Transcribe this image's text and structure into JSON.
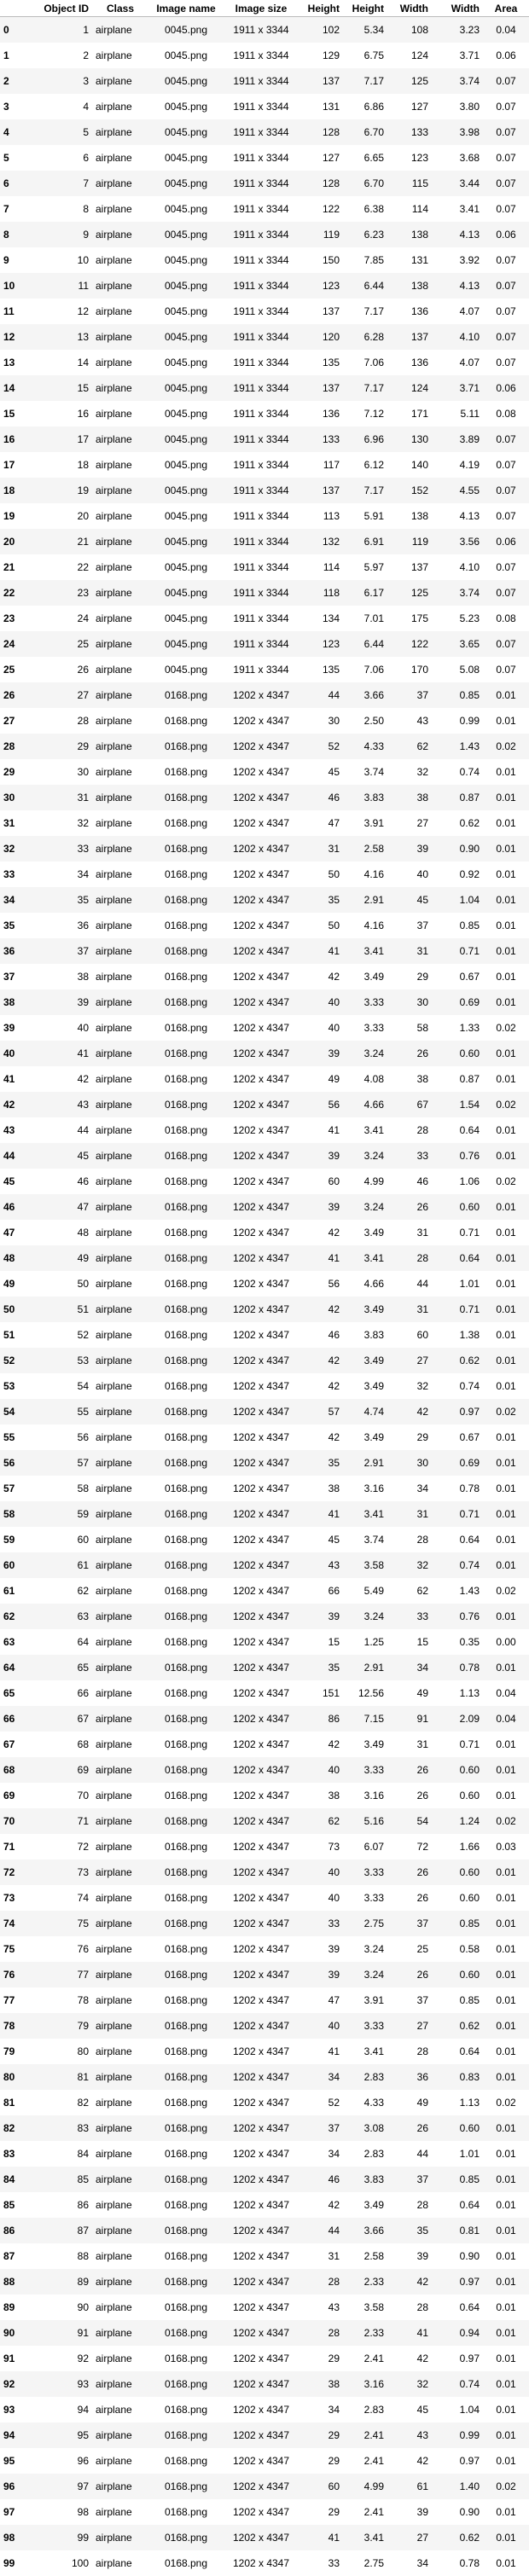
{
  "table": {
    "headers": [
      "",
      "Object ID",
      "Class",
      "Image name",
      "Image size",
      "Height",
      "Height",
      "Width",
      "Width",
      "Area"
    ],
    "rows": [
      [
        "0",
        "1",
        "airplane",
        "0045.png",
        "1911 x 3344",
        "102",
        "5.34",
        "108",
        "3.23",
        "0.04"
      ],
      [
        "1",
        "2",
        "airplane",
        "0045.png",
        "1911 x 3344",
        "129",
        "6.75",
        "124",
        "3.71",
        "0.06"
      ],
      [
        "2",
        "3",
        "airplane",
        "0045.png",
        "1911 x 3344",
        "137",
        "7.17",
        "125",
        "3.74",
        "0.07"
      ],
      [
        "3",
        "4",
        "airplane",
        "0045.png",
        "1911 x 3344",
        "131",
        "6.86",
        "127",
        "3.80",
        "0.07"
      ],
      [
        "4",
        "5",
        "airplane",
        "0045.png",
        "1911 x 3344",
        "128",
        "6.70",
        "133",
        "3.98",
        "0.07"
      ],
      [
        "5",
        "6",
        "airplane",
        "0045.png",
        "1911 x 3344",
        "127",
        "6.65",
        "123",
        "3.68",
        "0.07"
      ],
      [
        "6",
        "7",
        "airplane",
        "0045.png",
        "1911 x 3344",
        "128",
        "6.70",
        "115",
        "3.44",
        "0.07"
      ],
      [
        "7",
        "8",
        "airplane",
        "0045.png",
        "1911 x 3344",
        "122",
        "6.38",
        "114",
        "3.41",
        "0.07"
      ],
      [
        "8",
        "9",
        "airplane",
        "0045.png",
        "1911 x 3344",
        "119",
        "6.23",
        "138",
        "4.13",
        "0.06"
      ],
      [
        "9",
        "10",
        "airplane",
        "0045.png",
        "1911 x 3344",
        "150",
        "7.85",
        "131",
        "3.92",
        "0.07"
      ],
      [
        "10",
        "11",
        "airplane",
        "0045.png",
        "1911 x 3344",
        "123",
        "6.44",
        "138",
        "4.13",
        "0.07"
      ],
      [
        "11",
        "12",
        "airplane",
        "0045.png",
        "1911 x 3344",
        "137",
        "7.17",
        "136",
        "4.07",
        "0.07"
      ],
      [
        "12",
        "13",
        "airplane",
        "0045.png",
        "1911 x 3344",
        "120",
        "6.28",
        "137",
        "4.10",
        "0.07"
      ],
      [
        "13",
        "14",
        "airplane",
        "0045.png",
        "1911 x 3344",
        "135",
        "7.06",
        "136",
        "4.07",
        "0.07"
      ],
      [
        "14",
        "15",
        "airplane",
        "0045.png",
        "1911 x 3344",
        "137",
        "7.17",
        "124",
        "3.71",
        "0.06"
      ],
      [
        "15",
        "16",
        "airplane",
        "0045.png",
        "1911 x 3344",
        "136",
        "7.12",
        "171",
        "5.11",
        "0.08"
      ],
      [
        "16",
        "17",
        "airplane",
        "0045.png",
        "1911 x 3344",
        "133",
        "6.96",
        "130",
        "3.89",
        "0.07"
      ],
      [
        "17",
        "18",
        "airplane",
        "0045.png",
        "1911 x 3344",
        "117",
        "6.12",
        "140",
        "4.19",
        "0.07"
      ],
      [
        "18",
        "19",
        "airplane",
        "0045.png",
        "1911 x 3344",
        "137",
        "7.17",
        "152",
        "4.55",
        "0.07"
      ],
      [
        "19",
        "20",
        "airplane",
        "0045.png",
        "1911 x 3344",
        "113",
        "5.91",
        "138",
        "4.13",
        "0.07"
      ],
      [
        "20",
        "21",
        "airplane",
        "0045.png",
        "1911 x 3344",
        "132",
        "6.91",
        "119",
        "3.56",
        "0.06"
      ],
      [
        "21",
        "22",
        "airplane",
        "0045.png",
        "1911 x 3344",
        "114",
        "5.97",
        "137",
        "4.10",
        "0.07"
      ],
      [
        "22",
        "23",
        "airplane",
        "0045.png",
        "1911 x 3344",
        "118",
        "6.17",
        "125",
        "3.74",
        "0.07"
      ],
      [
        "23",
        "24",
        "airplane",
        "0045.png",
        "1911 x 3344",
        "134",
        "7.01",
        "175",
        "5.23",
        "0.08"
      ],
      [
        "24",
        "25",
        "airplane",
        "0045.png",
        "1911 x 3344",
        "123",
        "6.44",
        "122",
        "3.65",
        "0.07"
      ],
      [
        "25",
        "26",
        "airplane",
        "0045.png",
        "1911 x 3344",
        "135",
        "7.06",
        "170",
        "5.08",
        "0.07"
      ],
      [
        "26",
        "27",
        "airplane",
        "0168.png",
        "1202 x 4347",
        "44",
        "3.66",
        "37",
        "0.85",
        "0.01"
      ],
      [
        "27",
        "28",
        "airplane",
        "0168.png",
        "1202 x 4347",
        "30",
        "2.50",
        "43",
        "0.99",
        "0.01"
      ],
      [
        "28",
        "29",
        "airplane",
        "0168.png",
        "1202 x 4347",
        "52",
        "4.33",
        "62",
        "1.43",
        "0.02"
      ],
      [
        "29",
        "30",
        "airplane",
        "0168.png",
        "1202 x 4347",
        "45",
        "3.74",
        "32",
        "0.74",
        "0.01"
      ],
      [
        "30",
        "31",
        "airplane",
        "0168.png",
        "1202 x 4347",
        "46",
        "3.83",
        "38",
        "0.87",
        "0.01"
      ],
      [
        "31",
        "32",
        "airplane",
        "0168.png",
        "1202 x 4347",
        "47",
        "3.91",
        "27",
        "0.62",
        "0.01"
      ],
      [
        "32",
        "33",
        "airplane",
        "0168.png",
        "1202 x 4347",
        "31",
        "2.58",
        "39",
        "0.90",
        "0.01"
      ],
      [
        "33",
        "34",
        "airplane",
        "0168.png",
        "1202 x 4347",
        "50",
        "4.16",
        "40",
        "0.92",
        "0.01"
      ],
      [
        "34",
        "35",
        "airplane",
        "0168.png",
        "1202 x 4347",
        "35",
        "2.91",
        "45",
        "1.04",
        "0.01"
      ],
      [
        "35",
        "36",
        "airplane",
        "0168.png",
        "1202 x 4347",
        "50",
        "4.16",
        "37",
        "0.85",
        "0.01"
      ],
      [
        "36",
        "37",
        "airplane",
        "0168.png",
        "1202 x 4347",
        "41",
        "3.41",
        "31",
        "0.71",
        "0.01"
      ],
      [
        "37",
        "38",
        "airplane",
        "0168.png",
        "1202 x 4347",
        "42",
        "3.49",
        "29",
        "0.67",
        "0.01"
      ],
      [
        "38",
        "39",
        "airplane",
        "0168.png",
        "1202 x 4347",
        "40",
        "3.33",
        "30",
        "0.69",
        "0.01"
      ],
      [
        "39",
        "40",
        "airplane",
        "0168.png",
        "1202 x 4347",
        "40",
        "3.33",
        "58",
        "1.33",
        "0.02"
      ],
      [
        "40",
        "41",
        "airplane",
        "0168.png",
        "1202 x 4347",
        "39",
        "3.24",
        "26",
        "0.60",
        "0.01"
      ],
      [
        "41",
        "42",
        "airplane",
        "0168.png",
        "1202 x 4347",
        "49",
        "4.08",
        "38",
        "0.87",
        "0.01"
      ],
      [
        "42",
        "43",
        "airplane",
        "0168.png",
        "1202 x 4347",
        "56",
        "4.66",
        "67",
        "1.54",
        "0.02"
      ],
      [
        "43",
        "44",
        "airplane",
        "0168.png",
        "1202 x 4347",
        "41",
        "3.41",
        "28",
        "0.64",
        "0.01"
      ],
      [
        "44",
        "45",
        "airplane",
        "0168.png",
        "1202 x 4347",
        "39",
        "3.24",
        "33",
        "0.76",
        "0.01"
      ],
      [
        "45",
        "46",
        "airplane",
        "0168.png",
        "1202 x 4347",
        "60",
        "4.99",
        "46",
        "1.06",
        "0.02"
      ],
      [
        "46",
        "47",
        "airplane",
        "0168.png",
        "1202 x 4347",
        "39",
        "3.24",
        "26",
        "0.60",
        "0.01"
      ],
      [
        "47",
        "48",
        "airplane",
        "0168.png",
        "1202 x 4347",
        "42",
        "3.49",
        "31",
        "0.71",
        "0.01"
      ],
      [
        "48",
        "49",
        "airplane",
        "0168.png",
        "1202 x 4347",
        "41",
        "3.41",
        "28",
        "0.64",
        "0.01"
      ],
      [
        "49",
        "50",
        "airplane",
        "0168.png",
        "1202 x 4347",
        "56",
        "4.66",
        "44",
        "1.01",
        "0.01"
      ],
      [
        "50",
        "51",
        "airplane",
        "0168.png",
        "1202 x 4347",
        "42",
        "3.49",
        "31",
        "0.71",
        "0.01"
      ],
      [
        "51",
        "52",
        "airplane",
        "0168.png",
        "1202 x 4347",
        "46",
        "3.83",
        "60",
        "1.38",
        "0.01"
      ],
      [
        "52",
        "53",
        "airplane",
        "0168.png",
        "1202 x 4347",
        "42",
        "3.49",
        "27",
        "0.62",
        "0.01"
      ],
      [
        "53",
        "54",
        "airplane",
        "0168.png",
        "1202 x 4347",
        "42",
        "3.49",
        "32",
        "0.74",
        "0.01"
      ],
      [
        "54",
        "55",
        "airplane",
        "0168.png",
        "1202 x 4347",
        "57",
        "4.74",
        "42",
        "0.97",
        "0.02"
      ],
      [
        "55",
        "56",
        "airplane",
        "0168.png",
        "1202 x 4347",
        "42",
        "3.49",
        "29",
        "0.67",
        "0.01"
      ],
      [
        "56",
        "57",
        "airplane",
        "0168.png",
        "1202 x 4347",
        "35",
        "2.91",
        "30",
        "0.69",
        "0.01"
      ],
      [
        "57",
        "58",
        "airplane",
        "0168.png",
        "1202 x 4347",
        "38",
        "3.16",
        "34",
        "0.78",
        "0.01"
      ],
      [
        "58",
        "59",
        "airplane",
        "0168.png",
        "1202 x 4347",
        "41",
        "3.41",
        "31",
        "0.71",
        "0.01"
      ],
      [
        "59",
        "60",
        "airplane",
        "0168.png",
        "1202 x 4347",
        "45",
        "3.74",
        "28",
        "0.64",
        "0.01"
      ],
      [
        "60",
        "61",
        "airplane",
        "0168.png",
        "1202 x 4347",
        "43",
        "3.58",
        "32",
        "0.74",
        "0.01"
      ],
      [
        "61",
        "62",
        "airplane",
        "0168.png",
        "1202 x 4347",
        "66",
        "5.49",
        "62",
        "1.43",
        "0.02"
      ],
      [
        "62",
        "63",
        "airplane",
        "0168.png",
        "1202 x 4347",
        "39",
        "3.24",
        "33",
        "0.76",
        "0.01"
      ],
      [
        "63",
        "64",
        "airplane",
        "0168.png",
        "1202 x 4347",
        "15",
        "1.25",
        "15",
        "0.35",
        "0.00"
      ],
      [
        "64",
        "65",
        "airplane",
        "0168.png",
        "1202 x 4347",
        "35",
        "2.91",
        "34",
        "0.78",
        "0.01"
      ],
      [
        "65",
        "66",
        "airplane",
        "0168.png",
        "1202 x 4347",
        "151",
        "12.56",
        "49",
        "1.13",
        "0.04"
      ],
      [
        "66",
        "67",
        "airplane",
        "0168.png",
        "1202 x 4347",
        "86",
        "7.15",
        "91",
        "2.09",
        "0.04"
      ],
      [
        "67",
        "68",
        "airplane",
        "0168.png",
        "1202 x 4347",
        "42",
        "3.49",
        "31",
        "0.71",
        "0.01"
      ],
      [
        "68",
        "69",
        "airplane",
        "0168.png",
        "1202 x 4347",
        "40",
        "3.33",
        "26",
        "0.60",
        "0.01"
      ],
      [
        "69",
        "70",
        "airplane",
        "0168.png",
        "1202 x 4347",
        "38",
        "3.16",
        "26",
        "0.60",
        "0.01"
      ],
      [
        "70",
        "71",
        "airplane",
        "0168.png",
        "1202 x 4347",
        "62",
        "5.16",
        "54",
        "1.24",
        "0.02"
      ],
      [
        "71",
        "72",
        "airplane",
        "0168.png",
        "1202 x 4347",
        "73",
        "6.07",
        "72",
        "1.66",
        "0.03"
      ],
      [
        "72",
        "73",
        "airplane",
        "0168.png",
        "1202 x 4347",
        "40",
        "3.33",
        "26",
        "0.60",
        "0.01"
      ],
      [
        "73",
        "74",
        "airplane",
        "0168.png",
        "1202 x 4347",
        "40",
        "3.33",
        "26",
        "0.60",
        "0.01"
      ],
      [
        "74",
        "75",
        "airplane",
        "0168.png",
        "1202 x 4347",
        "33",
        "2.75",
        "37",
        "0.85",
        "0.01"
      ],
      [
        "75",
        "76",
        "airplane",
        "0168.png",
        "1202 x 4347",
        "39",
        "3.24",
        "25",
        "0.58",
        "0.01"
      ],
      [
        "76",
        "77",
        "airplane",
        "0168.png",
        "1202 x 4347",
        "39",
        "3.24",
        "26",
        "0.60",
        "0.01"
      ],
      [
        "77",
        "78",
        "airplane",
        "0168.png",
        "1202 x 4347",
        "47",
        "3.91",
        "37",
        "0.85",
        "0.01"
      ],
      [
        "78",
        "79",
        "airplane",
        "0168.png",
        "1202 x 4347",
        "40",
        "3.33",
        "27",
        "0.62",
        "0.01"
      ],
      [
        "79",
        "80",
        "airplane",
        "0168.png",
        "1202 x 4347",
        "41",
        "3.41",
        "28",
        "0.64",
        "0.01"
      ],
      [
        "80",
        "81",
        "airplane",
        "0168.png",
        "1202 x 4347",
        "34",
        "2.83",
        "36",
        "0.83",
        "0.01"
      ],
      [
        "81",
        "82",
        "airplane",
        "0168.png",
        "1202 x 4347",
        "52",
        "4.33",
        "49",
        "1.13",
        "0.02"
      ],
      [
        "82",
        "83",
        "airplane",
        "0168.png",
        "1202 x 4347",
        "37",
        "3.08",
        "26",
        "0.60",
        "0.01"
      ],
      [
        "83",
        "84",
        "airplane",
        "0168.png",
        "1202 x 4347",
        "34",
        "2.83",
        "44",
        "1.01",
        "0.01"
      ],
      [
        "84",
        "85",
        "airplane",
        "0168.png",
        "1202 x 4347",
        "46",
        "3.83",
        "37",
        "0.85",
        "0.01"
      ],
      [
        "85",
        "86",
        "airplane",
        "0168.png",
        "1202 x 4347",
        "42",
        "3.49",
        "28",
        "0.64",
        "0.01"
      ],
      [
        "86",
        "87",
        "airplane",
        "0168.png",
        "1202 x 4347",
        "44",
        "3.66",
        "35",
        "0.81",
        "0.01"
      ],
      [
        "87",
        "88",
        "airplane",
        "0168.png",
        "1202 x 4347",
        "31",
        "2.58",
        "39",
        "0.90",
        "0.01"
      ],
      [
        "88",
        "89",
        "airplane",
        "0168.png",
        "1202 x 4347",
        "28",
        "2.33",
        "42",
        "0.97",
        "0.01"
      ],
      [
        "89",
        "90",
        "airplane",
        "0168.png",
        "1202 x 4347",
        "43",
        "3.58",
        "28",
        "0.64",
        "0.01"
      ],
      [
        "90",
        "91",
        "airplane",
        "0168.png",
        "1202 x 4347",
        "28",
        "2.33",
        "41",
        "0.94",
        "0.01"
      ],
      [
        "91",
        "92",
        "airplane",
        "0168.png",
        "1202 x 4347",
        "29",
        "2.41",
        "42",
        "0.97",
        "0.01"
      ],
      [
        "92",
        "93",
        "airplane",
        "0168.png",
        "1202 x 4347",
        "38",
        "3.16",
        "32",
        "0.74",
        "0.01"
      ],
      [
        "93",
        "94",
        "airplane",
        "0168.png",
        "1202 x 4347",
        "34",
        "2.83",
        "45",
        "1.04",
        "0.01"
      ],
      [
        "94",
        "95",
        "airplane",
        "0168.png",
        "1202 x 4347",
        "29",
        "2.41",
        "43",
        "0.99",
        "0.01"
      ],
      [
        "95",
        "96",
        "airplane",
        "0168.png",
        "1202 x 4347",
        "29",
        "2.41",
        "42",
        "0.97",
        "0.01"
      ],
      [
        "96",
        "97",
        "airplane",
        "0168.png",
        "1202 x 4347",
        "60",
        "4.99",
        "61",
        "1.40",
        "0.02"
      ],
      [
        "97",
        "98",
        "airplane",
        "0168.png",
        "1202 x 4347",
        "29",
        "2.41",
        "39",
        "0.90",
        "0.01"
      ],
      [
        "98",
        "99",
        "airplane",
        "0168.png",
        "1202 x 4347",
        "41",
        "3.41",
        "27",
        "0.62",
        "0.01"
      ],
      [
        "99",
        "100",
        "airplane",
        "0168.png",
        "1202 x 4347",
        "33",
        "2.75",
        "34",
        "0.78",
        "0.01"
      ]
    ]
  }
}
